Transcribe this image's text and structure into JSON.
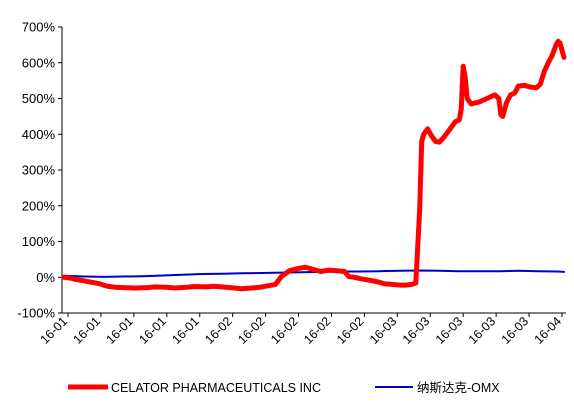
{
  "chart_data": {
    "type": "line",
    "title": "",
    "xlabel": "",
    "ylabel": "",
    "ylim": [
      -100,
      700
    ],
    "y_ticks": [
      "700%",
      "600%",
      "500%",
      "400%",
      "300%",
      "200%",
      "100%",
      "0%",
      "-100%"
    ],
    "x_ticks": [
      "16-01",
      "16-01",
      "16-01",
      "16-01",
      "16-01",
      "16-02",
      "16-02",
      "16-02",
      "16-02",
      "16-02",
      "16-03",
      "16-03",
      "16-03",
      "16-03",
      "16-03",
      "16-04"
    ],
    "grid": false,
    "legend_position": "bottom",
    "series": [
      {
        "name": "CELATOR PHARMACEUTICALS INC",
        "color": "#ff0000",
        "values": [
          [
            0,
            0
          ],
          [
            3,
            -2
          ],
          [
            6,
            -6
          ],
          [
            10,
            -10
          ],
          [
            14,
            -14
          ],
          [
            18,
            -18
          ],
          [
            21,
            -24
          ],
          [
            23,
            -26
          ],
          [
            26,
            -28
          ],
          [
            30,
            -29
          ],
          [
            36,
            -30
          ],
          [
            42,
            -29
          ],
          [
            46,
            -27
          ],
          [
            52,
            -28
          ],
          [
            56,
            -30
          ],
          [
            62,
            -28
          ],
          [
            66,
            -26
          ],
          [
            72,
            -27
          ],
          [
            76,
            -25
          ],
          [
            82,
            -28
          ],
          [
            86,
            -30
          ],
          [
            90,
            -32
          ],
          [
            93,
            -31
          ],
          [
            95,
            -30
          ],
          [
            99,
            -28
          ],
          [
            103,
            -24
          ],
          [
            107,
            -20
          ],
          [
            110,
            2
          ],
          [
            112,
            10
          ],
          [
            114,
            18
          ],
          [
            118,
            24
          ],
          [
            122,
            28
          ],
          [
            126,
            22
          ],
          [
            130,
            16
          ],
          [
            134,
            20
          ],
          [
            138,
            18
          ],
          [
            142,
            16
          ],
          [
            144,
            2
          ],
          [
            147,
            0
          ],
          [
            150,
            -4
          ],
          [
            154,
            -8
          ],
          [
            158,
            -12
          ],
          [
            162,
            -18
          ],
          [
            166,
            -20
          ],
          [
            170,
            -22
          ],
          [
            173,
            -22
          ],
          [
            176,
            -20
          ],
          [
            178,
            -16
          ],
          [
            180,
            190
          ],
          [
            181,
            380
          ],
          [
            182,
            400
          ],
          [
            184,
            415
          ],
          [
            186,
            395
          ],
          [
            188,
            380
          ],
          [
            190,
            378
          ],
          [
            192,
            390
          ],
          [
            194,
            405
          ],
          [
            196,
            420
          ],
          [
            198,
            435
          ],
          [
            200,
            440
          ],
          [
            201,
            470
          ],
          [
            202,
            590
          ],
          [
            203,
            560
          ],
          [
            204,
            500
          ],
          [
            206,
            485
          ],
          [
            210,
            490
          ],
          [
            214,
            500
          ],
          [
            216,
            505
          ],
          [
            218,
            510
          ],
          [
            220,
            500
          ],
          [
            221,
            455
          ],
          [
            222,
            450
          ],
          [
            224,
            490
          ],
          [
            226,
            510
          ],
          [
            228,
            515
          ],
          [
            230,
            535
          ],
          [
            233,
            537
          ],
          [
            236,
            532
          ],
          [
            239,
            530
          ],
          [
            241,
            540
          ],
          [
            243,
            575
          ],
          [
            245,
            600
          ],
          [
            247,
            620
          ],
          [
            249,
            650
          ],
          [
            250,
            660
          ],
          [
            251,
            655
          ],
          [
            252,
            635
          ],
          [
            253,
            615
          ]
        ]
      },
      {
        "name": "纳斯达克-OMX",
        "color": "#0000cc",
        "values": [
          [
            0,
            4
          ],
          [
            10,
            2
          ],
          [
            20,
            1
          ],
          [
            30,
            2
          ],
          [
            40,
            3
          ],
          [
            50,
            5
          ],
          [
            60,
            7
          ],
          [
            70,
            9
          ],
          [
            80,
            10
          ],
          [
            90,
            11
          ],
          [
            100,
            12
          ],
          [
            110,
            13
          ],
          [
            120,
            14
          ],
          [
            130,
            15
          ],
          [
            140,
            16
          ],
          [
            150,
            16
          ],
          [
            160,
            17
          ],
          [
            170,
            18
          ],
          [
            180,
            19
          ],
          [
            190,
            18
          ],
          [
            200,
            17
          ],
          [
            210,
            17
          ],
          [
            220,
            17
          ],
          [
            230,
            18
          ],
          [
            240,
            17
          ],
          [
            250,
            16
          ],
          [
            253,
            15
          ]
        ]
      }
    ]
  }
}
